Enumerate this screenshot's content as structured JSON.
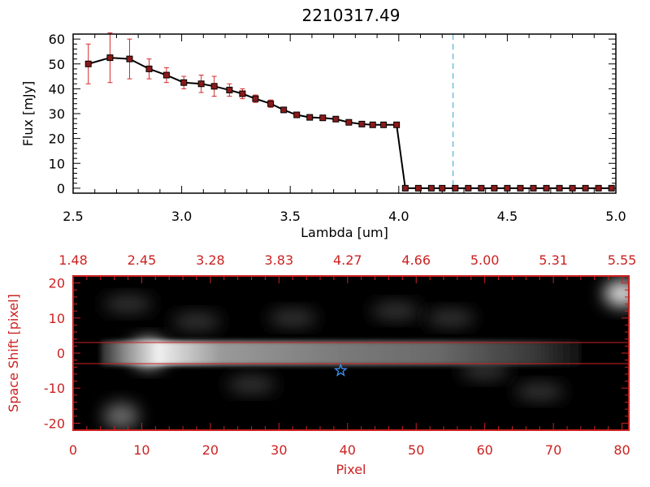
{
  "chart_data": [
    {
      "type": "line",
      "title": "2210317.49",
      "xlabel": "Lambda [um]",
      "ylabel": "Flux [mJy]",
      "xlim": [
        2.5,
        5.0
      ],
      "ylim": [
        -2,
        62
      ],
      "x_ticks": [
        2.5,
        3.0,
        3.5,
        4.0,
        4.5,
        5.0
      ],
      "x_tick_labels": [
        "2.5",
        "3.0",
        "3.5",
        "4.0",
        "4.5",
        "5.0"
      ],
      "y_ticks": [
        0,
        10,
        20,
        30,
        40,
        50,
        60
      ],
      "y_tick_labels": [
        "0",
        "10",
        "20",
        "30",
        "40",
        "50",
        "60"
      ],
      "vline": {
        "x": 4.25,
        "style": "dashed",
        "color": "#3aa6c9"
      },
      "series": [
        {
          "name": "flux",
          "line_color": "#000000",
          "marker_color": "#8b1a1a",
          "error_color": "#d42a2a",
          "x": [
            2.57,
            2.67,
            2.76,
            2.85,
            2.93,
            3.01,
            3.09,
            3.15,
            3.22,
            3.28,
            3.34,
            3.41,
            3.47,
            3.53,
            3.59,
            3.65,
            3.71,
            3.77,
            3.83,
            3.88,
            3.93,
            3.99,
            4.03,
            4.09,
            4.15,
            4.2,
            4.26,
            4.32,
            4.38,
            4.44,
            4.5,
            4.56,
            4.62,
            4.68,
            4.74,
            4.8,
            4.86,
            4.92,
            4.98
          ],
          "y": [
            50,
            52.5,
            52,
            48,
            45.5,
            42.5,
            42,
            41,
            39.5,
            38,
            36,
            34,
            31.5,
            29.5,
            28.5,
            28.3,
            27.8,
            26.5,
            25.8,
            25.5,
            25.5,
            25.5,
            0,
            0,
            0,
            0,
            0,
            0,
            0,
            0,
            0,
            0,
            0,
            0,
            0,
            0,
            0,
            0,
            0
          ],
          "yerr": [
            8,
            10,
            8,
            4,
            3,
            2.5,
            3.5,
            4,
            2.5,
            2,
            1.5,
            1.5,
            1,
            1,
            1,
            1,
            1,
            1,
            0.8,
            0.8,
            0.8,
            0.8,
            0.3,
            0.3,
            0.3,
            0.3,
            0.3,
            0.3,
            0.3,
            0.3,
            0.3,
            0.3,
            0.3,
            0.3,
            0.3,
            0.3,
            0.3,
            0.3,
            0.3
          ]
        }
      ]
    },
    {
      "type": "heatmap",
      "colormap": "grayscale",
      "xlabel": "Pixel",
      "ylabel": "Space Shift [pixel]",
      "axis_color": "#cc2222",
      "xlim": [
        0,
        81
      ],
      "ylim": [
        -22,
        22
      ],
      "x_ticks": [
        0,
        10,
        20,
        30,
        40,
        50,
        60,
        70,
        80
      ],
      "x_tick_labels": [
        "0",
        "10",
        "20",
        "30",
        "40",
        "50",
        "60",
        "70",
        "80"
      ],
      "y_ticks": [
        -20,
        -10,
        0,
        10,
        20
      ],
      "y_tick_labels": [
        "-20",
        "-10",
        "0",
        "10",
        "20"
      ],
      "top_axis_positions": [
        0,
        10,
        20,
        30,
        40,
        50,
        60,
        70,
        80
      ],
      "top_axis_labels": [
        "1.48",
        "2.45",
        "3.28",
        "3.83",
        "4.27",
        "4.66",
        "5.00",
        "5.31",
        "5.55"
      ],
      "hlines": [
        3,
        -3
      ],
      "marker": {
        "x": 39,
        "y": -5,
        "symbol": "star",
        "color": "#3a8eea"
      },
      "sources": [
        {
          "x": 11,
          "y": 0,
          "peak": 1.0
        },
        {
          "x": 80,
          "y": 17,
          "peak": 0.85
        },
        {
          "x": 7,
          "y": -18,
          "peak": 0.25
        }
      ]
    }
  ]
}
